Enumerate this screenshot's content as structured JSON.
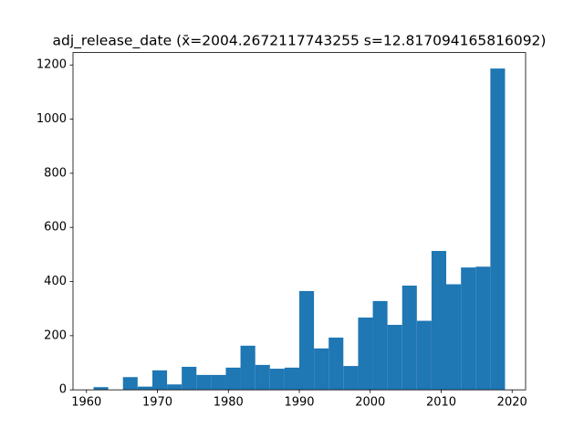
{
  "chart_data": {
    "type": "histogram",
    "title": "adj_release_date (x̄=2004.2672117743255 s=12.817094165816092)",
    "bins": [
      1961,
      1963.07,
      1965.14,
      1967.21,
      1969.29,
      1971.36,
      1973.43,
      1975.5,
      1977.57,
      1979.64,
      1981.71,
      1983.79,
      1985.86,
      1987.93,
      1990,
      1992.07,
      1994.14,
      1996.21,
      1998.29,
      2000.36,
      2002.43,
      2004.5,
      2006.57,
      2008.64,
      2010.71,
      2012.79,
      2014.86,
      2016.93,
      2019
    ],
    "values": [
      10,
      0,
      47,
      12,
      72,
      20,
      85,
      55,
      55,
      82,
      163,
      92,
      78,
      82,
      365,
      153,
      193,
      88,
      267,
      328,
      240,
      385,
      255,
      513,
      390,
      452,
      455,
      1187
    ],
    "color": "#1f77b4",
    "xlim": [
      1958.1,
      2021.9
    ],
    "xticks": [
      1960,
      1970,
      1980,
      1990,
      2000,
      2010,
      2020
    ],
    "ylim": [
      0,
      1246
    ],
    "yticks": [
      0,
      200,
      400,
      600,
      800,
      1000,
      1200
    ],
    "grid": false
  }
}
